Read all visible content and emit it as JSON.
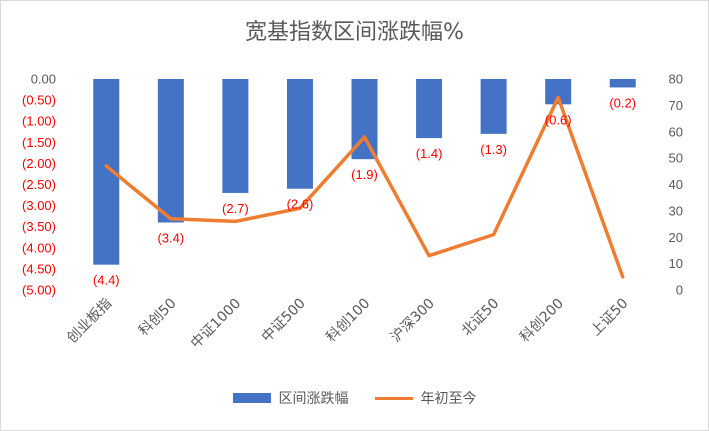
{
  "chart_data": {
    "type": "bar",
    "title": "宽基指数区间涨跌幅%",
    "categories": [
      "创业板指",
      "科创50",
      "中证1000",
      "中证500",
      "科创100",
      "沪深300",
      "北证50",
      "科创200",
      "上证50"
    ],
    "series": [
      {
        "name": "区间涨跌幅",
        "type": "bar",
        "axis": "left",
        "values": [
          -4.4,
          -3.4,
          -2.7,
          -2.6,
          -1.9,
          -1.4,
          -1.3,
          -0.6,
          -0.2
        ],
        "labels": [
          "(4.4)",
          "(3.4)",
          "(2.7)",
          "(2.6)",
          "(1.9)",
          "(1.4)",
          "(1.3)",
          "(0.6)",
          "(0.2)"
        ],
        "color": "#4472c4"
      },
      {
        "name": "年初至今",
        "type": "line",
        "axis": "right",
        "values": [
          47,
          27,
          26,
          31,
          58,
          13,
          21,
          73,
          5
        ],
        "color": "#ed7d31"
      }
    ],
    "left_axis": {
      "min": -5,
      "max": 0,
      "step": 0.5,
      "tick_labels": [
        "0.00",
        "(0.50)",
        "(1.00)",
        "(1.50)",
        "(2.00)",
        "(2.50)",
        "(3.00)",
        "(3.50)",
        "(4.00)",
        "(4.50)",
        "(5.00)"
      ],
      "tick_color_zero": "#595959",
      "tick_color_negative": "#ff0000"
    },
    "right_axis": {
      "min": 0,
      "max": 80,
      "step": 10,
      "tick_labels": [
        "0",
        "10",
        "20",
        "30",
        "40",
        "50",
        "60",
        "70",
        "80"
      ]
    },
    "legend_position": "bottom",
    "grid": false
  },
  "legend": {
    "bar_label": "区间涨跌幅",
    "line_label": "年初至今"
  }
}
